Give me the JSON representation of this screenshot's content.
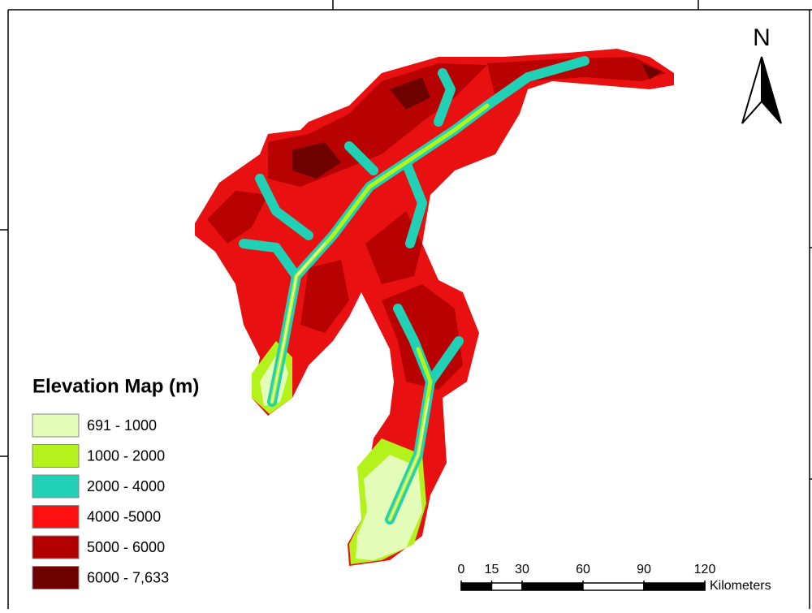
{
  "legend": {
    "title": "Elevation Map (m)",
    "items": [
      {
        "label": "691 - 1000",
        "color": "#e3fcb8"
      },
      {
        "label": "1000 - 2000",
        "color": "#b3f21b"
      },
      {
        "label": "2000 - 4000",
        "color": "#20d1b5"
      },
      {
        "label": "4000 -5000",
        "color": "#ff1010"
      },
      {
        "label": "5000 - 6000",
        "color": "#b20000"
      },
      {
        "label": "6000 - 7,633",
        "color": "#6e0000"
      }
    ]
  },
  "north_arrow": {
    "label": "N"
  },
  "scale_bar": {
    "ticks": [
      0,
      15,
      30,
      60,
      90,
      120
    ],
    "unit": "Kilometers"
  }
}
